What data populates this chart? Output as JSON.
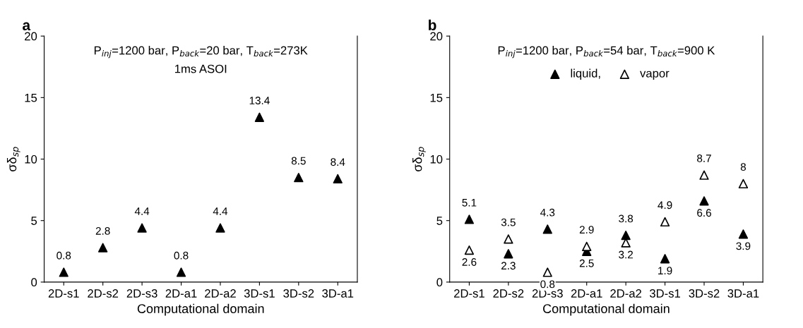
{
  "chart_data": [
    {
      "type": "scatter",
      "title": "a",
      "xlabel": "Computational domain",
      "ylabel": "σδ$_{sp}$",
      "categories": [
        "2D-s1",
        "2D-s2",
        "2D-s3",
        "2D-a1",
        "2D-a2",
        "3D-s1",
        "3D-s2",
        "3D-a1"
      ],
      "series": [
        {
          "color": "#000000",
          "values": [
            0.8,
            2.8,
            4.4,
            0.8,
            4.4,
            13.4,
            8.5,
            8.4
          ]
        }
      ],
      "ylim": [
        0,
        20
      ],
      "yticks": [
        0,
        5,
        10,
        15,
        20
      ],
      "marker": "triangle",
      "data_labels": true,
      "grid": false,
      "legend": false,
      "annotations": [
        "P$_{inj}$=1200 bar, P$_{back}$=20 bar, T$_{back}$=273K",
        "1ms ASOI"
      ]
    },
    {
      "type": "scatter",
      "title": "b",
      "xlabel": "Computational domain",
      "ylabel": "σδ$_{sp}$",
      "categories": [
        "2D-s1",
        "2D-s2",
        "2D-s3",
        "2D-a1",
        "2D-a2",
        "3D-s1",
        "3D-s2",
        "3D-a1"
      ],
      "series": [
        {
          "name": "liquid,",
          "color": "#000000",
          "values": [
            5.1,
            2.3,
            4.3,
            2.5,
            3.8,
            1.9,
            6.6,
            3.9
          ]
        },
        {
          "name": "vapor",
          "color": "#000000",
          "values": [
            2.6,
            3.5,
            0.8,
            2.9,
            3.2,
            4.9,
            8.7,
            8
          ]
        }
      ],
      "ylim": [
        0,
        20
      ],
      "yticks": [
        0,
        5,
        10,
        15,
        20
      ],
      "marker": "triangle",
      "data_labels": true,
      "grid": false,
      "legend": "top",
      "annotations": [
        "P$_{inj}$=1200 bar, P$_{back}$=54 bar, T$_{back}$=900 K"
      ]
    }
  ]
}
